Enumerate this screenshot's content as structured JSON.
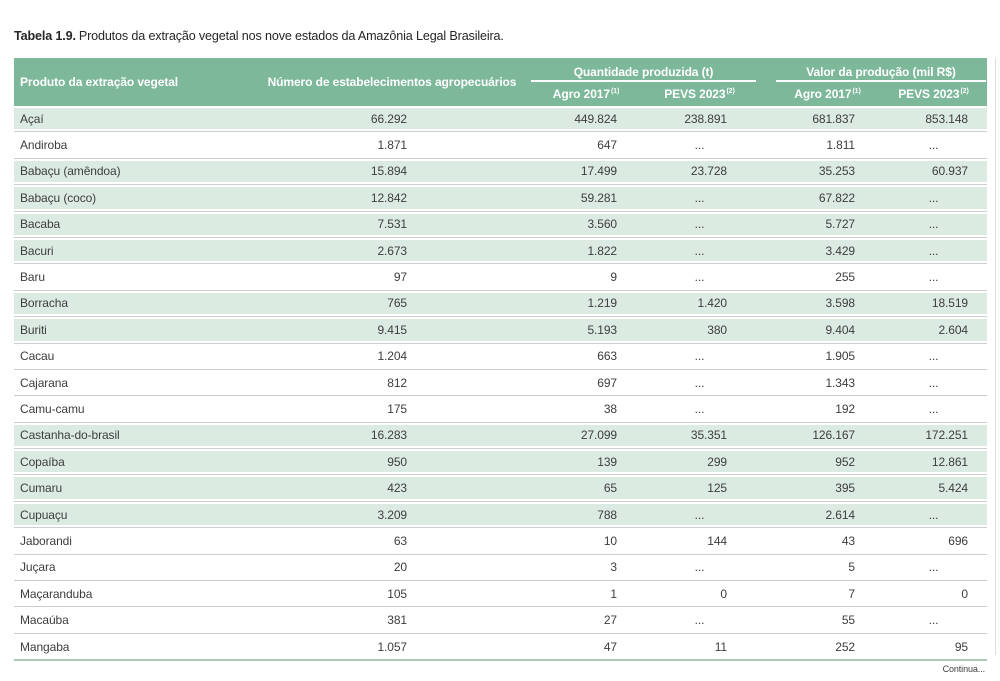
{
  "title": {
    "label": "Tabela 1.9.",
    "text": "Produtos da extração vegetal nos nove estados da Amazônia Legal Brasileira."
  },
  "footer": {
    "continuation": "Continua..."
  },
  "colors": {
    "header_bg": "#7db89b",
    "header_text": "#ffffff",
    "row_highlight": "#dcebe2",
    "row_plain": "#ffffff",
    "separator": "#c9cfce",
    "bottom_border": "#abc8b9",
    "cell_text": "#3d3d3d"
  },
  "table": {
    "no_data_symbol": "...",
    "header": {
      "product": "Produto da extração vegetal",
      "establishments": "Número de estabelecimentos agropecuários",
      "quantity_group": "Quantidade produzida (t)",
      "value_group": "Valor da produção (mil R$)",
      "agro_label": "Agro 2017",
      "agro_sup": "(1)",
      "pevs_label": "PEVS 2023",
      "pevs_sup": "(2)"
    },
    "rows": [
      {
        "product": "Açaí",
        "establishments": "66.292",
        "qty_agro2017": "449.824",
        "qty_pevs2023": "238.891",
        "val_agro2017": "681.837",
        "val_pevs2023": "853.148",
        "highlight": true
      },
      {
        "product": "Andiroba",
        "establishments": "1.871",
        "qty_agro2017": "647",
        "qty_pevs2023": "...",
        "val_agro2017": "1.811",
        "val_pevs2023": "...",
        "highlight": false
      },
      {
        "product": "Babaçu (amêndoa)",
        "establishments": "15.894",
        "qty_agro2017": "17.499",
        "qty_pevs2023": "23.728",
        "val_agro2017": "35.253",
        "val_pevs2023": "60.937",
        "highlight": true
      },
      {
        "product": "Babaçu (coco)",
        "establishments": "12.842",
        "qty_agro2017": "59.281",
        "qty_pevs2023": "...",
        "val_agro2017": "67.822",
        "val_pevs2023": "...",
        "highlight": true
      },
      {
        "product": "Bacaba",
        "establishments": "7.531",
        "qty_agro2017": "3.560",
        "qty_pevs2023": "...",
        "val_agro2017": "5.727",
        "val_pevs2023": "...",
        "highlight": true
      },
      {
        "product": "Bacuri",
        "establishments": "2.673",
        "qty_agro2017": "1.822",
        "qty_pevs2023": "...",
        "val_agro2017": "3.429",
        "val_pevs2023": "...",
        "highlight": true
      },
      {
        "product": "Baru",
        "establishments": "97",
        "qty_agro2017": "9",
        "qty_pevs2023": "...",
        "val_agro2017": "255",
        "val_pevs2023": "...",
        "highlight": false
      },
      {
        "product": "Borracha",
        "establishments": "765",
        "qty_agro2017": "1.219",
        "qty_pevs2023": "1.420",
        "val_agro2017": "3.598",
        "val_pevs2023": "18.519",
        "highlight": true
      },
      {
        "product": "Buriti",
        "establishments": "9.415",
        "qty_agro2017": "5.193",
        "qty_pevs2023": "380",
        "val_agro2017": "9.404",
        "val_pevs2023": "2.604",
        "highlight": true
      },
      {
        "product": "Cacau",
        "establishments": "1.204",
        "qty_agro2017": "663",
        "qty_pevs2023": "...",
        "val_agro2017": "1.905",
        "val_pevs2023": "...",
        "highlight": false
      },
      {
        "product": "Cajarana",
        "establishments": "812",
        "qty_agro2017": "697",
        "qty_pevs2023": "...",
        "val_agro2017": "1.343",
        "val_pevs2023": "...",
        "highlight": false
      },
      {
        "product": "Camu-camu",
        "establishments": "175",
        "qty_agro2017": "38",
        "qty_pevs2023": "...",
        "val_agro2017": "192",
        "val_pevs2023": "...",
        "highlight": false
      },
      {
        "product": "Castanha-do-brasil",
        "establishments": "16.283",
        "qty_agro2017": "27.099",
        "qty_pevs2023": "35.351",
        "val_agro2017": "126.167",
        "val_pevs2023": "172.251",
        "highlight": true
      },
      {
        "product": "Copaíba",
        "establishments": "950",
        "qty_agro2017": "139",
        "qty_pevs2023": "299",
        "val_agro2017": "952",
        "val_pevs2023": "12.861",
        "highlight": true
      },
      {
        "product": "Cumaru",
        "establishments": "423",
        "qty_agro2017": "65",
        "qty_pevs2023": "125",
        "val_agro2017": "395",
        "val_pevs2023": "5.424",
        "highlight": true
      },
      {
        "product": "Cupuaçu",
        "establishments": "3.209",
        "qty_agro2017": "788",
        "qty_pevs2023": "...",
        "val_agro2017": "2.614",
        "val_pevs2023": "...",
        "highlight": true
      },
      {
        "product": "Jaborandi",
        "establishments": "63",
        "qty_agro2017": "10",
        "qty_pevs2023": "144",
        "val_agro2017": "43",
        "val_pevs2023": "696",
        "highlight": false
      },
      {
        "product": "Juçara",
        "establishments": "20",
        "qty_agro2017": "3",
        "qty_pevs2023": "...",
        "val_agro2017": "5",
        "val_pevs2023": "...",
        "highlight": false
      },
      {
        "product": "Maçaranduba",
        "establishments": "105",
        "qty_agro2017": "1",
        "qty_pevs2023": "0",
        "val_agro2017": "7",
        "val_pevs2023": "0",
        "highlight": false
      },
      {
        "product": "Macaúba",
        "establishments": "381",
        "qty_agro2017": "27",
        "qty_pevs2023": "...",
        "val_agro2017": "55",
        "val_pevs2023": "...",
        "highlight": false
      },
      {
        "product": "Mangaba",
        "establishments": "1.057",
        "qty_agro2017": "47",
        "qty_pevs2023": "11",
        "val_agro2017": "252",
        "val_pevs2023": "95",
        "highlight": false
      }
    ]
  }
}
